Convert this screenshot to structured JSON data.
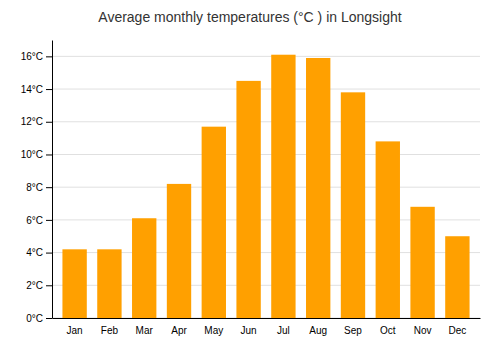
{
  "chart_data": {
    "type": "bar",
    "title": "Average monthly temperatures (°C ) in Longsight",
    "categories": [
      "Jan",
      "Feb",
      "Mar",
      "Apr",
      "May",
      "Jun",
      "Jul",
      "Aug",
      "Sep",
      "Oct",
      "Nov",
      "Dec"
    ],
    "values": [
      4.2,
      4.2,
      6.1,
      8.2,
      11.7,
      14.5,
      16.1,
      15.9,
      13.8,
      10.8,
      6.8,
      5.0
    ],
    "color": "#FFA000",
    "ylim": [
      0,
      17
    ],
    "yticks": [
      {
        "value": 0,
        "label": "0°C"
      },
      {
        "value": 2,
        "label": "2°C"
      },
      {
        "value": 4,
        "label": "4°C"
      },
      {
        "value": 6,
        "label": "6°C"
      },
      {
        "value": 8,
        "label": "8°C"
      },
      {
        "value": 10,
        "label": "10°C"
      },
      {
        "value": 12,
        "label": "12°C"
      },
      {
        "value": 14,
        "label": "14°C"
      },
      {
        "value": 16,
        "label": "16°C"
      }
    ],
    "grid": true
  }
}
